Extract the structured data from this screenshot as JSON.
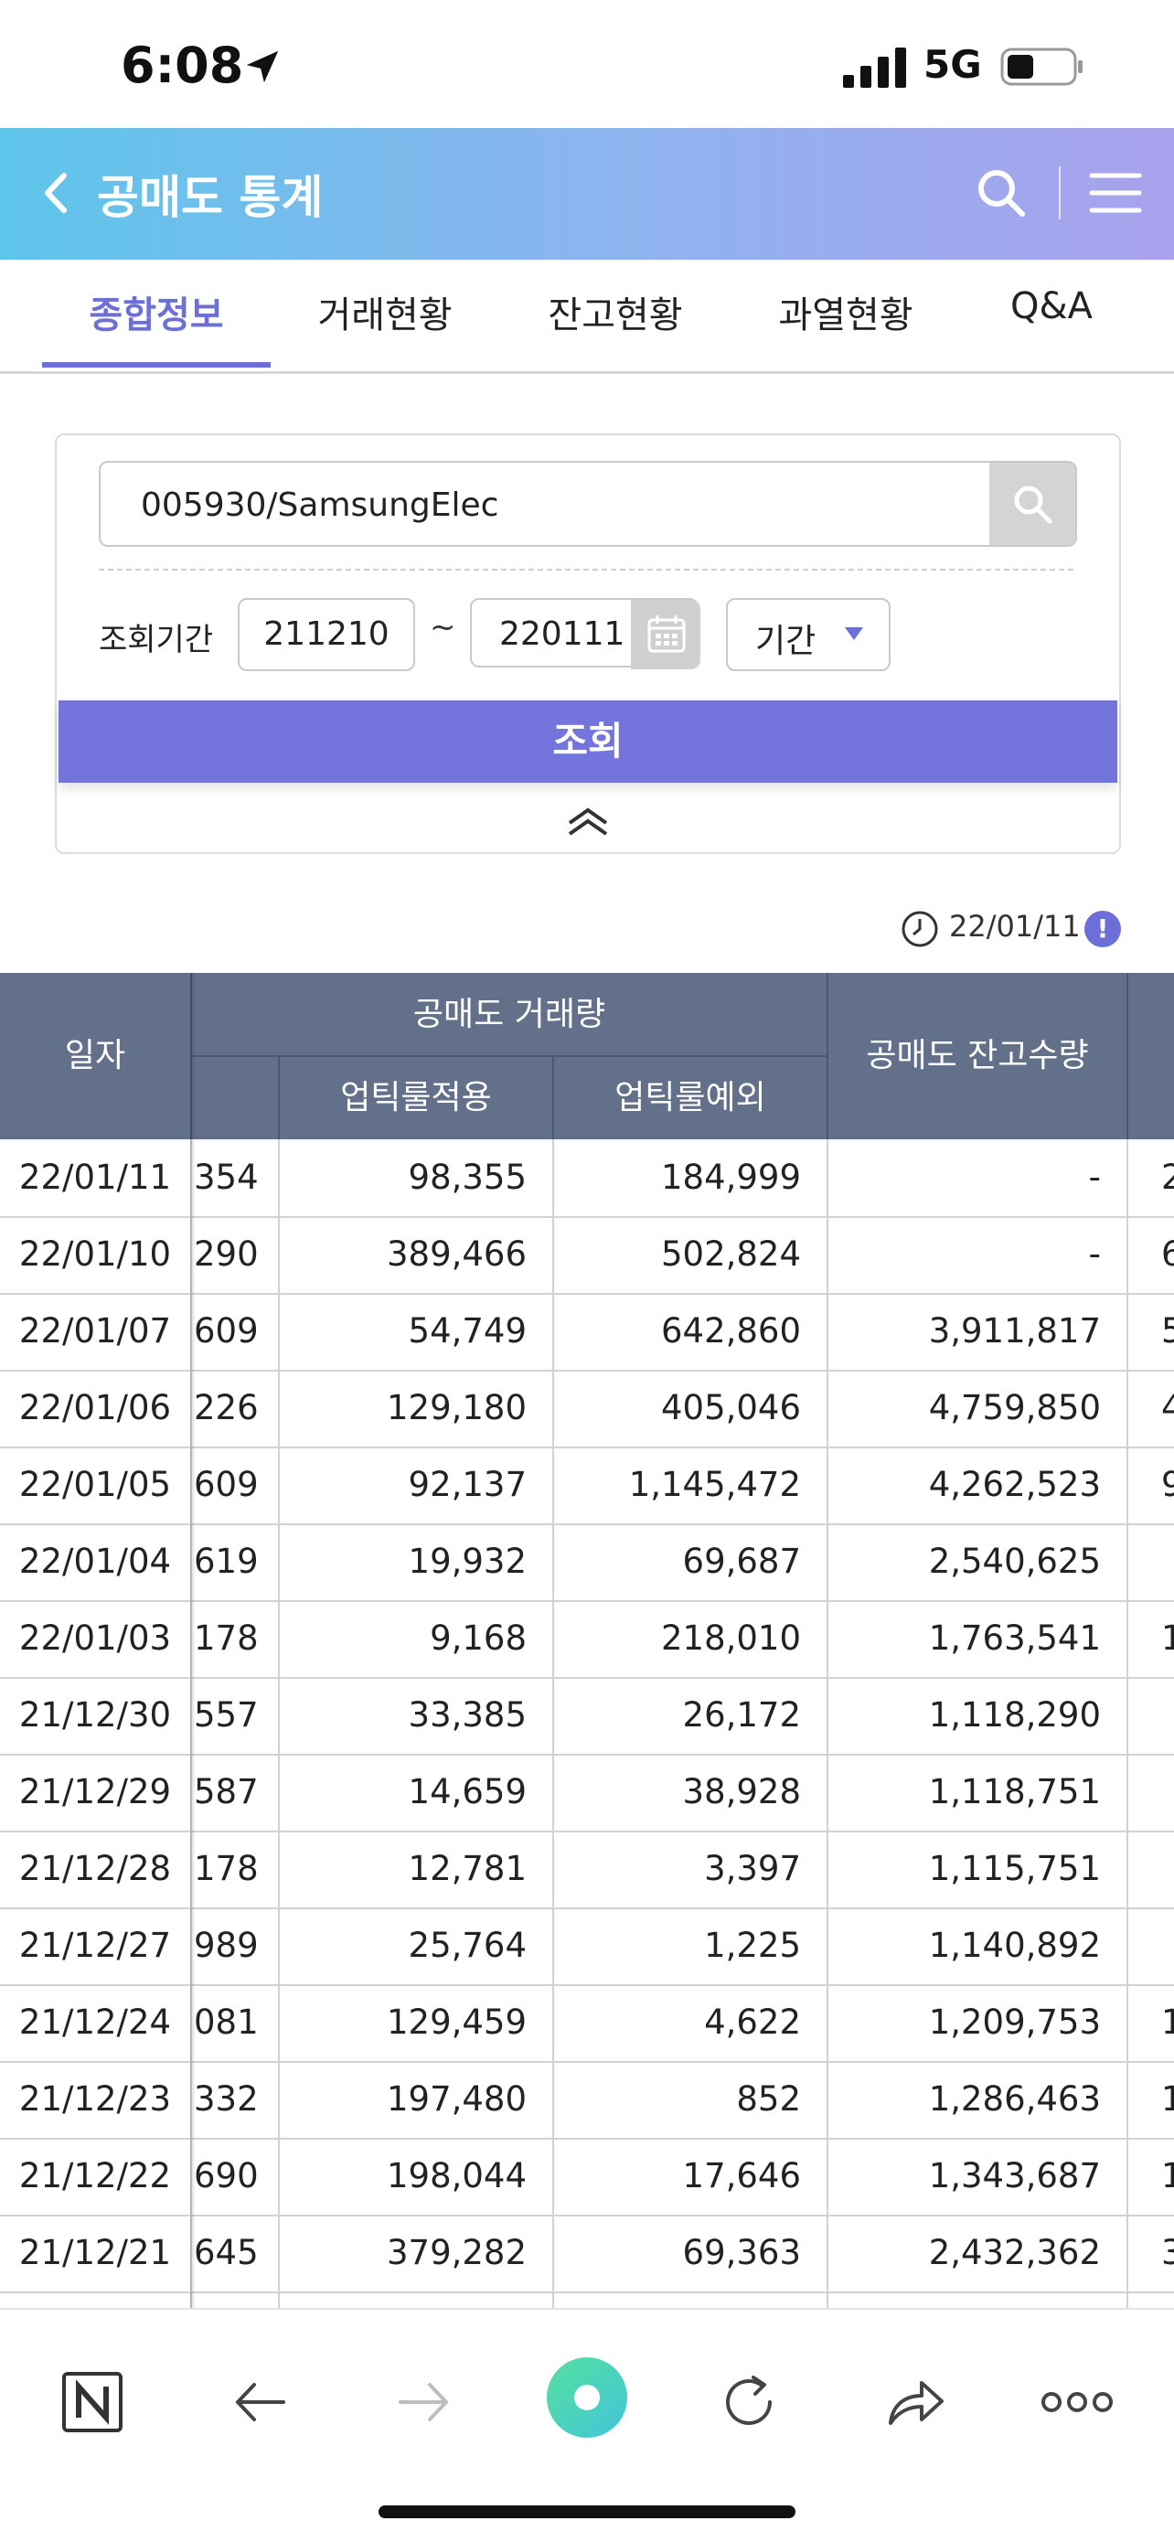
{
  "status_bar": {
    "time": "6:08",
    "network": "5G"
  },
  "header": {
    "title": "공매도 통계"
  },
  "tabs": [
    {
      "label": "종합정보",
      "active": true
    },
    {
      "label": "거래현황",
      "active": false
    },
    {
      "label": "잔고현황",
      "active": false
    },
    {
      "label": "과열현황",
      "active": false
    },
    {
      "label": "Q&A",
      "active": false
    }
  ],
  "search": {
    "value": "005930/SamsungElec",
    "period_label": "조회기간",
    "start_date": "211210",
    "separator": "~",
    "end_date": "220111",
    "period_type": "기간",
    "query_button": "조회"
  },
  "timestamp": {
    "date": "22/01/11",
    "info_symbol": "!"
  },
  "table": {
    "headers": {
      "date": "일자",
      "trade_volume": "공매도 거래량",
      "uptick_applied": "업틱룰적용",
      "uptick_exempt": "업틱룰예외",
      "balance_qty": "공매도 잔고수량"
    },
    "rows": [
      {
        "date": "22/01/11",
        "partial": "354",
        "uptick": "98,355",
        "exempt": "184,999",
        "balance": "-",
        "next": "2"
      },
      {
        "date": "22/01/10",
        "partial": "290",
        "uptick": "389,466",
        "exempt": "502,824",
        "balance": "-",
        "next": "6"
      },
      {
        "date": "22/01/07",
        "partial": "609",
        "uptick": "54,749",
        "exempt": "642,860",
        "balance": "3,911,817",
        "next": "5"
      },
      {
        "date": "22/01/06",
        "partial": "226",
        "uptick": "129,180",
        "exempt": "405,046",
        "balance": "4,759,850",
        "next": "4"
      },
      {
        "date": "22/01/05",
        "partial": "609",
        "uptick": "92,137",
        "exempt": "1,145,472",
        "balance": "4,262,523",
        "next": "9"
      },
      {
        "date": "22/01/04",
        "partial": "619",
        "uptick": "19,932",
        "exempt": "69,687",
        "balance": "2,540,625",
        "next": ""
      },
      {
        "date": "22/01/03",
        "partial": "178",
        "uptick": "9,168",
        "exempt": "218,010",
        "balance": "1,763,541",
        "next": "1"
      },
      {
        "date": "21/12/30",
        "partial": "557",
        "uptick": "33,385",
        "exempt": "26,172",
        "balance": "1,118,290",
        "next": ""
      },
      {
        "date": "21/12/29",
        "partial": "587",
        "uptick": "14,659",
        "exempt": "38,928",
        "balance": "1,118,751",
        "next": ""
      },
      {
        "date": "21/12/28",
        "partial": "178",
        "uptick": "12,781",
        "exempt": "3,397",
        "balance": "1,115,751",
        "next": ""
      },
      {
        "date": "21/12/27",
        "partial": "989",
        "uptick": "25,764",
        "exempt": "1,225",
        "balance": "1,140,892",
        "next": ""
      },
      {
        "date": "21/12/24",
        "partial": "081",
        "uptick": "129,459",
        "exempt": "4,622",
        "balance": "1,209,753",
        "next": "1"
      },
      {
        "date": "21/12/23",
        "partial": "332",
        "uptick": "197,480",
        "exempt": "852",
        "balance": "1,286,463",
        "next": "1"
      },
      {
        "date": "21/12/22",
        "partial": "690",
        "uptick": "198,044",
        "exempt": "17,646",
        "balance": "1,343,687",
        "next": "1"
      },
      {
        "date": "21/12/21",
        "partial": "645",
        "uptick": "379,282",
        "exempt": "69,363",
        "balance": "2,432,362",
        "next": "3"
      },
      {
        "date": "",
        "partial": "",
        "uptick": "",
        "exempt": "",
        "balance": "",
        "next": ""
      }
    ]
  },
  "bottom_bar": {
    "icons": [
      "naver-n-icon",
      "back-arrow-icon",
      "forward-arrow-icon",
      "home-green-dot-icon",
      "refresh-icon",
      "share-icon",
      "more-icon"
    ]
  },
  "colors": {
    "accent": "#7374dc",
    "header_table": "#637089",
    "header_gradient_start": "#5ec5ea",
    "header_gradient_end": "#a9a2ec"
  }
}
